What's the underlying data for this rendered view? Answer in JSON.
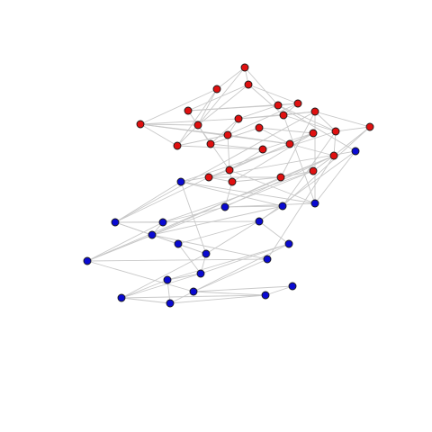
{
  "colors": {
    "background": "#ffffff",
    "edge": "#c8c8c8",
    "community_red": "#e01010",
    "community_blue": "#0a0ad2"
  },
  "graph": {
    "type": "network",
    "groups": [
      "red",
      "blue"
    ],
    "nodes": [
      {
        "id": "r1",
        "group": "red"
      },
      {
        "id": "r2",
        "group": "red"
      },
      {
        "id": "r3",
        "group": "red"
      },
      {
        "id": "r4",
        "group": "red"
      },
      {
        "id": "r5",
        "group": "red"
      },
      {
        "id": "r6",
        "group": "red"
      },
      {
        "id": "r7",
        "group": "red"
      },
      {
        "id": "r8",
        "group": "red"
      },
      {
        "id": "r9",
        "group": "red"
      },
      {
        "id": "r10",
        "group": "red"
      },
      {
        "id": "r11",
        "group": "red"
      },
      {
        "id": "r12",
        "group": "red"
      },
      {
        "id": "r13",
        "group": "red"
      },
      {
        "id": "r14",
        "group": "red"
      },
      {
        "id": "r15",
        "group": "red"
      },
      {
        "id": "r16",
        "group": "red"
      },
      {
        "id": "r17",
        "group": "red"
      },
      {
        "id": "r18",
        "group": "red"
      },
      {
        "id": "r19",
        "group": "red"
      },
      {
        "id": "r20",
        "group": "red"
      },
      {
        "id": "r21",
        "group": "red"
      },
      {
        "id": "r22",
        "group": "red"
      },
      {
        "id": "r23",
        "group": "red"
      },
      {
        "id": "r24",
        "group": "red"
      },
      {
        "id": "r25",
        "group": "red"
      },
      {
        "id": "r26",
        "group": "red"
      },
      {
        "id": "b1",
        "group": "blue"
      },
      {
        "id": "b2",
        "group": "blue"
      },
      {
        "id": "b3",
        "group": "blue"
      },
      {
        "id": "b4",
        "group": "blue"
      },
      {
        "id": "b5",
        "group": "blue"
      },
      {
        "id": "b6",
        "group": "blue"
      },
      {
        "id": "b7",
        "group": "blue"
      },
      {
        "id": "b8",
        "group": "blue"
      },
      {
        "id": "b9",
        "group": "blue"
      },
      {
        "id": "b10",
        "group": "blue"
      },
      {
        "id": "b11",
        "group": "blue"
      },
      {
        "id": "b12",
        "group": "blue"
      },
      {
        "id": "b13",
        "group": "blue"
      },
      {
        "id": "b14",
        "group": "blue"
      },
      {
        "id": "b15",
        "group": "blue"
      },
      {
        "id": "b16",
        "group": "blue"
      },
      {
        "id": "b17",
        "group": "blue"
      },
      {
        "id": "b18",
        "group": "blue"
      },
      {
        "id": "b19",
        "group": "blue"
      },
      {
        "id": "b20",
        "group": "blue"
      },
      {
        "id": "b21",
        "group": "blue"
      }
    ],
    "edges": [
      [
        "r1",
        "r2"
      ],
      [
        "r1",
        "r3"
      ],
      [
        "r1",
        "r6"
      ],
      [
        "r1",
        "r9"
      ],
      [
        "r2",
        "r5"
      ],
      [
        "r2",
        "r6"
      ],
      [
        "r2",
        "r7"
      ],
      [
        "r3",
        "r4"
      ],
      [
        "r3",
        "r6"
      ],
      [
        "r3",
        "r11"
      ],
      [
        "r3",
        "r15"
      ],
      [
        "r4",
        "r8"
      ],
      [
        "r4",
        "r11"
      ],
      [
        "r5",
        "r6"
      ],
      [
        "r5",
        "r7"
      ],
      [
        "r5",
        "r10"
      ],
      [
        "r5",
        "r16"
      ],
      [
        "r5",
        "r12"
      ],
      [
        "r6",
        "r7"
      ],
      [
        "r6",
        "r8"
      ],
      [
        "r6",
        "r19"
      ],
      [
        "r7",
        "r12"
      ],
      [
        "r8",
        "r13"
      ],
      [
        "r8",
        "r14"
      ],
      [
        "r8",
        "r10"
      ],
      [
        "r9",
        "r10"
      ],
      [
        "r9",
        "r11"
      ],
      [
        "r10",
        "r15"
      ],
      [
        "r10",
        "r17"
      ],
      [
        "r10",
        "r12"
      ],
      [
        "r11",
        "r15"
      ],
      [
        "r11",
        "r12"
      ],
      [
        "r12",
        "r19"
      ],
      [
        "r12",
        "r16"
      ],
      [
        "r13",
        "r16"
      ],
      [
        "r13",
        "r18"
      ],
      [
        "r14",
        "r18"
      ],
      [
        "r14",
        "r7"
      ],
      [
        "r15",
        "r17"
      ],
      [
        "r15",
        "r20"
      ],
      [
        "r16",
        "r18"
      ],
      [
        "r16",
        "r21"
      ],
      [
        "r17",
        "r20"
      ],
      [
        "r17",
        "r23"
      ],
      [
        "r18",
        "r22"
      ],
      [
        "r18",
        "r19"
      ],
      [
        "r19",
        "r21"
      ],
      [
        "r19",
        "r22"
      ],
      [
        "r20",
        "r23"
      ],
      [
        "r20",
        "r24"
      ],
      [
        "r21",
        "r22"
      ],
      [
        "r21",
        "r25"
      ],
      [
        "r22",
        "r25"
      ],
      [
        "r23",
        "r24"
      ],
      [
        "r24",
        "r26"
      ],
      [
        "r25",
        "r26"
      ],
      [
        "r16",
        "r24"
      ],
      [
        "r9",
        "r20"
      ],
      [
        "r13",
        "r8"
      ],
      [
        "r17",
        "r25"
      ],
      [
        "r4",
        "r9"
      ],
      [
        "r24",
        "r25"
      ],
      [
        "r14",
        "r19"
      ],
      [
        "b1",
        "b2"
      ],
      [
        "b1",
        "b3"
      ],
      [
        "b1",
        "b6"
      ],
      [
        "b2",
        "b3"
      ],
      [
        "b2",
        "b4"
      ],
      [
        "b3",
        "b5"
      ],
      [
        "b3",
        "b7"
      ],
      [
        "b4",
        "b5"
      ],
      [
        "b4",
        "b8"
      ],
      [
        "b5",
        "b9"
      ],
      [
        "b6",
        "b7"
      ],
      [
        "b6",
        "b10"
      ],
      [
        "b6",
        "b11"
      ],
      [
        "b7",
        "b8"
      ],
      [
        "b7",
        "b10"
      ],
      [
        "b7",
        "b12"
      ],
      [
        "b8",
        "b9"
      ],
      [
        "b8",
        "b13"
      ],
      [
        "b9",
        "b13"
      ],
      [
        "b9",
        "b14"
      ],
      [
        "b10",
        "b12"
      ],
      [
        "b10",
        "b15"
      ],
      [
        "b11",
        "b15"
      ],
      [
        "b11",
        "b16"
      ],
      [
        "b12",
        "b15"
      ],
      [
        "b12",
        "b17"
      ],
      [
        "b13",
        "b14"
      ],
      [
        "b13",
        "b18"
      ],
      [
        "b14",
        "b18"
      ],
      [
        "b15",
        "b16"
      ],
      [
        "b15",
        "b17"
      ],
      [
        "b16",
        "b17"
      ],
      [
        "b16",
        "b19"
      ],
      [
        "b17",
        "b19"
      ],
      [
        "b17",
        "b20"
      ],
      [
        "b18",
        "b20"
      ],
      [
        "b18",
        "b21"
      ],
      [
        "b19",
        "b20"
      ],
      [
        "b20",
        "b21"
      ],
      [
        "b11",
        "b19"
      ],
      [
        "b5",
        "b12"
      ],
      [
        "b3",
        "b12"
      ],
      [
        "r9",
        "b1"
      ],
      [
        "r17",
        "b2"
      ],
      [
        "r20",
        "b3"
      ],
      [
        "r24",
        "b4"
      ],
      [
        "r23",
        "b5"
      ],
      [
        "r21",
        "b7"
      ],
      [
        "r26",
        "b8"
      ],
      [
        "r25",
        "b9"
      ],
      [
        "r22",
        "b4"
      ],
      [
        "r19",
        "b2"
      ],
      [
        "r15",
        "b2"
      ],
      [
        "r24",
        "b13"
      ],
      [
        "r26",
        "b13"
      ],
      [
        "r20",
        "b5"
      ],
      [
        "r17",
        "b7"
      ],
      [
        "r24",
        "b14"
      ]
    ]
  }
}
